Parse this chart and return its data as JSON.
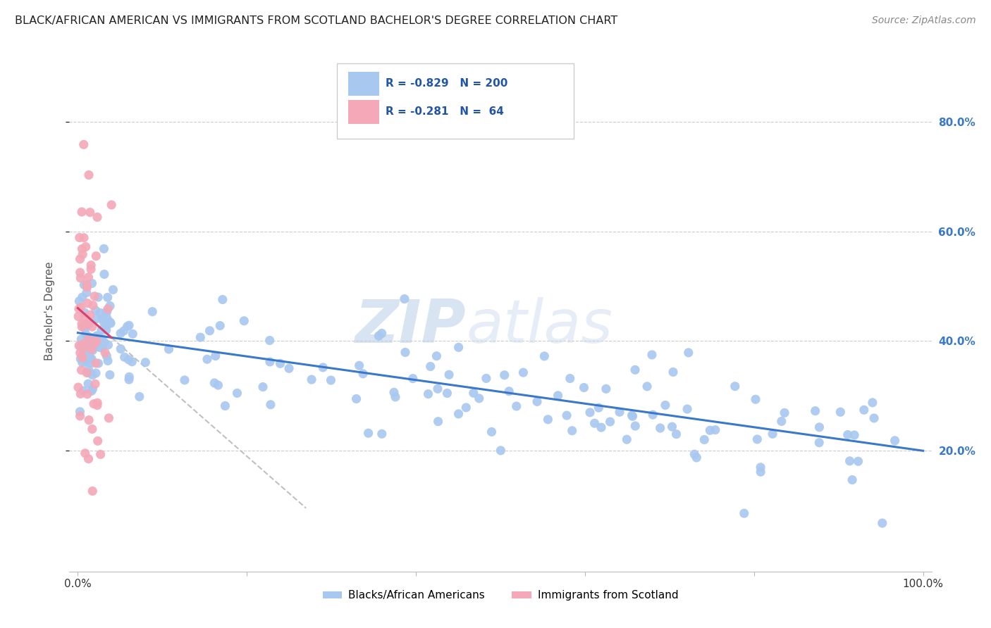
{
  "title": "BLACK/AFRICAN AMERICAN VS IMMIGRANTS FROM SCOTLAND BACHELOR'S DEGREE CORRELATION CHART",
  "source": "Source: ZipAtlas.com",
  "ylabel": "Bachelor's Degree",
  "right_yticks": [
    "80.0%",
    "60.0%",
    "40.0%",
    "20.0%"
  ],
  "right_ytick_vals": [
    0.8,
    0.6,
    0.4,
    0.2
  ],
  "blue_color": "#A8C8F0",
  "pink_color": "#F4A8B8",
  "blue_line_color": "#3A78C9",
  "pink_line_color": "#D84070",
  "blue_R": -0.829,
  "blue_N": 200,
  "pink_R": -0.281,
  "pink_N": 64,
  "blue_intercept": 0.415,
  "blue_slope": -0.215,
  "pink_intercept": 0.46,
  "pink_slope": -1.35,
  "watermark_zip": "ZIP",
  "watermark_atlas": "atlas",
  "background_color": "#FFFFFF",
  "grid_color": "#CCCCCC",
  "legend_R1": "R = -0.829",
  "legend_N1": "N = 200",
  "legend_R2": "R = -0.281",
  "legend_N2": "N =  64"
}
